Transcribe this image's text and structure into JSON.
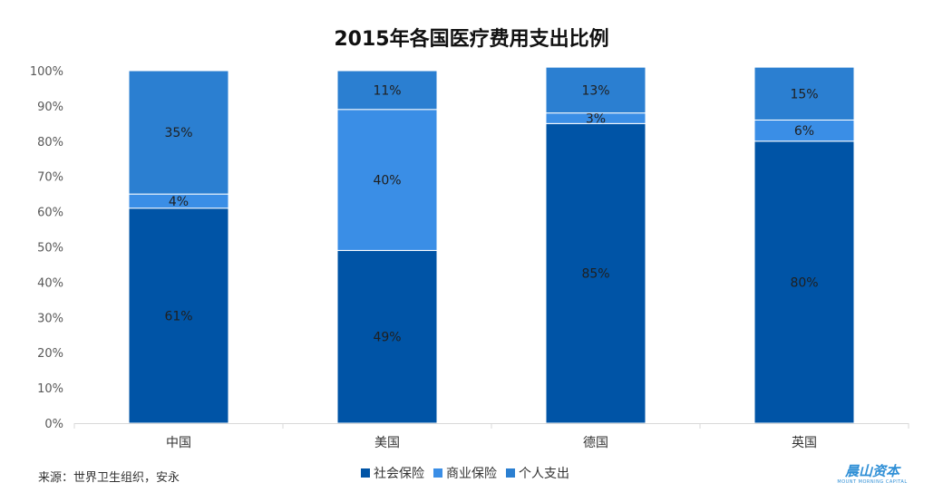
{
  "chart_data": {
    "type": "bar",
    "stacked": true,
    "title": "2015年各国医疗费用支出比例",
    "categories": [
      "中国",
      "美国",
      "德国",
      "英国"
    ],
    "series": [
      {
        "name": "社会保险",
        "values": [
          61,
          49,
          85,
          80
        ],
        "labels": [
          "61%",
          "49%",
          "85%",
          "80%"
        ],
        "color": "#0054a6"
      },
      {
        "name": "商业保险",
        "values": [
          4,
          40,
          3,
          6
        ],
        "labels": [
          "4%",
          "40%",
          "3%",
          "6%"
        ],
        "color": "#3a8ee6"
      },
      {
        "name": "个人支出",
        "values": [
          35,
          11,
          13,
          15
        ],
        "labels": [
          "35%",
          "11%",
          "13%",
          "15%"
        ],
        "color": "#2b7fd1"
      }
    ],
    "yticks": [
      "0%",
      "10%",
      "20%",
      "30%",
      "40%",
      "50%",
      "60%",
      "70%",
      "80%",
      "90%",
      "100%"
    ],
    "ylim": [
      0,
      100
    ],
    "grid": false,
    "legend_position": "bottom"
  },
  "source": "来源：世界卫生组织，安永",
  "logo": {
    "text": "晨山资本",
    "subtext": "MOUNT MORNING CAPITAL"
  }
}
